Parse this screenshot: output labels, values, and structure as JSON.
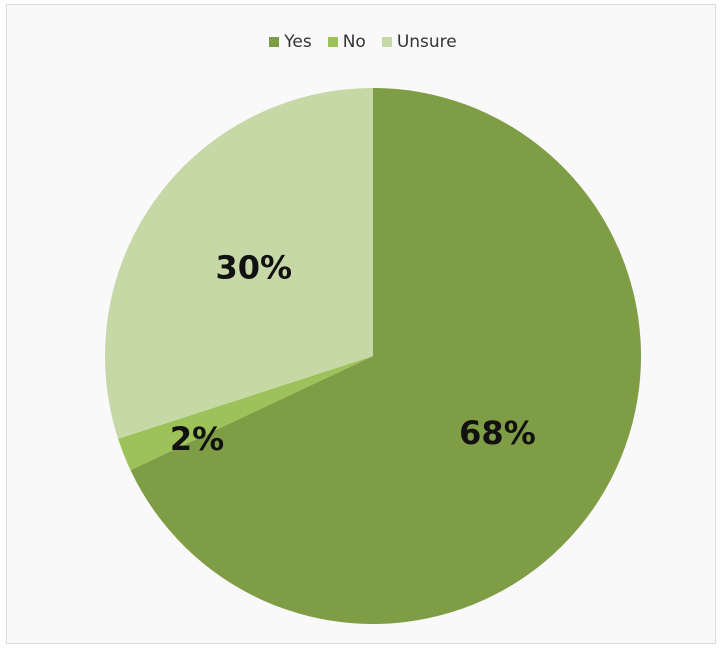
{
  "chart_data": {
    "type": "pie",
    "title": "",
    "categories": [
      "Yes",
      "No",
      "Unsure"
    ],
    "values": [
      68,
      2,
      30
    ],
    "data_labels": [
      "68%",
      "2%",
      "30%"
    ],
    "colors": [
      "#7f9d45",
      "#9dc25a",
      "#c6d8a6"
    ],
    "legend_position": "top-center",
    "start_angle_deg": 0,
    "direction": "clockwise"
  }
}
